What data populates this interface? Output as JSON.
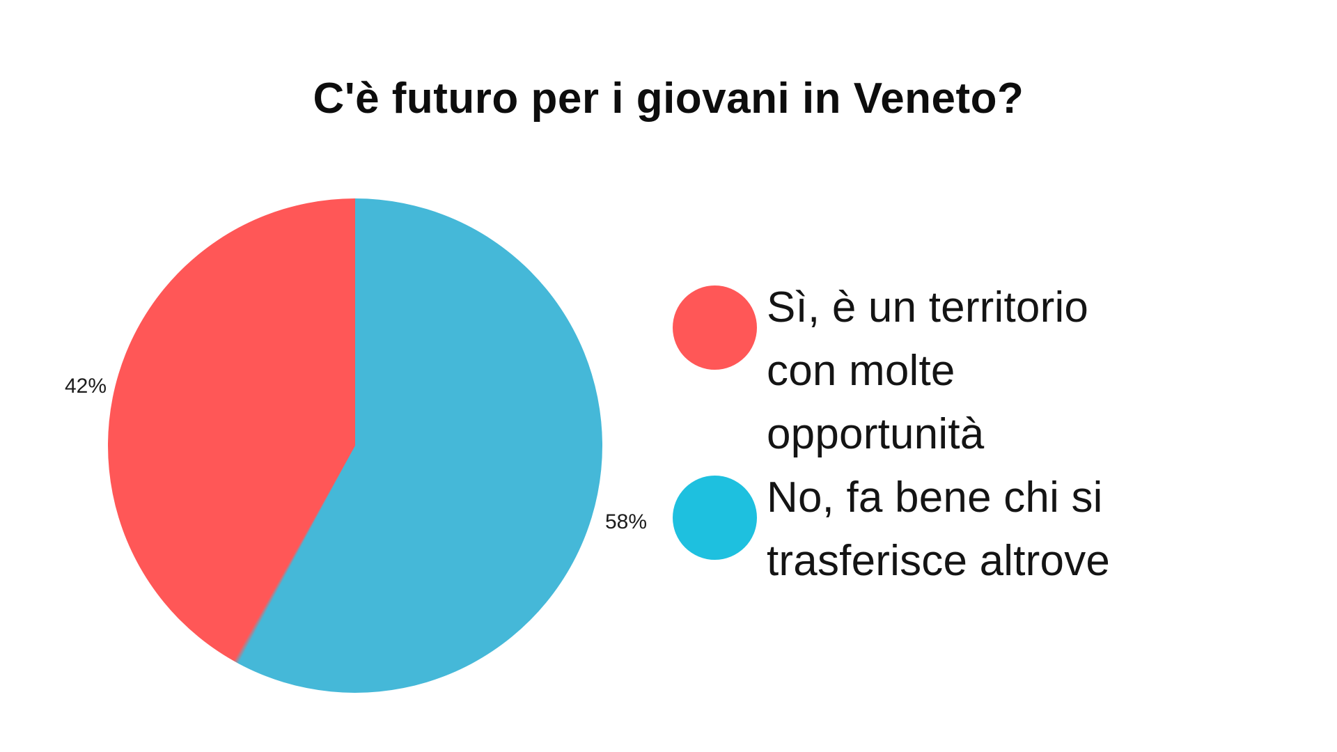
{
  "title": "C'è futuro per i giovani in Veneto?",
  "colors": {
    "background": "#ffffff",
    "text": "#141414",
    "slice_red": "#FF5757",
    "slice_blue": "#45B8D8",
    "legend_red": "#FF5757",
    "legend_cyan": "#1EC0DF"
  },
  "chart_data": {
    "type": "pie",
    "title": "C'è futuro per i giovani in Veneto?",
    "direction": "counterclockwise-from-top",
    "label_position": "outside",
    "legend_position": "right",
    "slices": [
      {
        "label": "Sì, è un territorio con molte opportunità",
        "value": 42,
        "pct_label": "42%",
        "color": "#FF5757"
      },
      {
        "label": "No, fa bene chi si trasferisce altrove",
        "value": 58,
        "pct_label": "58%",
        "color": "#45B8D8"
      }
    ]
  },
  "legend": {
    "items": [
      {
        "label": "Sì, è un territorio\ncon molte\nopportunità",
        "swatch_color": "#FF5757"
      },
      {
        "label": "No, fa bene chi si\ntrasferisce altrove",
        "swatch_color": "#1EC0DF"
      }
    ]
  }
}
